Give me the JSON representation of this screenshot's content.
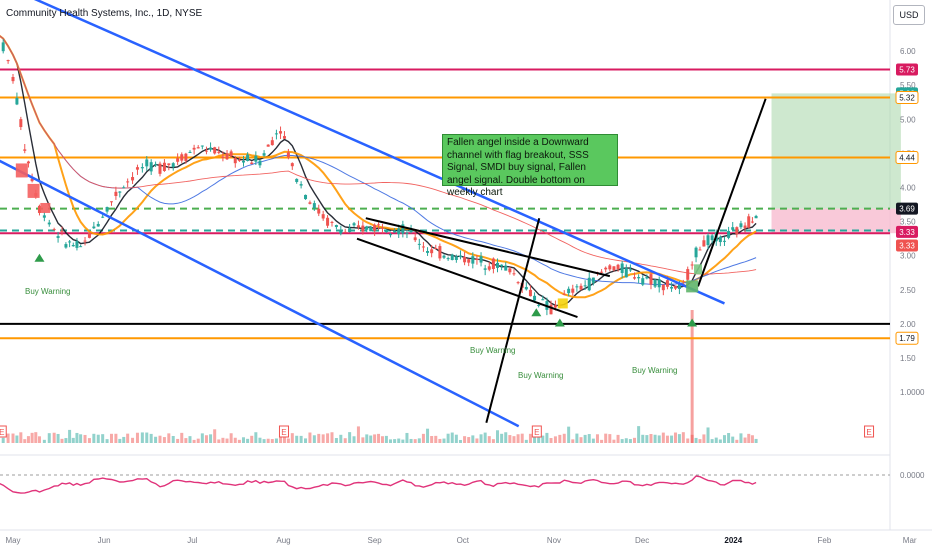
{
  "header": {
    "ticker_title": "Community Health Systems, Inc., 1D, NYSE",
    "currency_button": "USD"
  },
  "colors": {
    "up": "#26a69a",
    "down": "#ef5350",
    "channel": "#2962ff",
    "magenta": "#d81b60",
    "orange": "#ff9800",
    "note_bg": "#5ac85e",
    "tp_zone": "#a5d6a7",
    "sl_zone": "#f8bbd0"
  },
  "note": {
    "text": "Fallen angel inside a Downward channel with flag breakout, SSS Signal, SMDI buy signal, Fallen angel signal. Double bottom on weekly chart"
  },
  "annotations": [
    {
      "id": "bw1",
      "text": "Buy Warning",
      "date": "2023-05-10",
      "price": 2.9
    },
    {
      "id": "bw2",
      "text": "Buy Warning",
      "date": "2023-10-26",
      "price": 2.0
    },
    {
      "id": "bw3",
      "text": "Buy Warning",
      "date": "2023-11-03",
      "price": 1.8
    },
    {
      "id": "bw4",
      "text": "Buy Warning",
      "date": "2023-12-18",
      "price": 1.85
    }
  ],
  "chart_data": {
    "type": "candlestick",
    "price_axis": {
      "ticks": [
        "6.50",
        "6.00",
        "5.50",
        "5.00",
        "4.50",
        "4.00",
        "3.50",
        "3.00",
        "2.50",
        "2.00",
        "1.50",
        "1.0000"
      ]
    },
    "oscillator_axis": {
      "ticks": [
        "0.0000"
      ]
    },
    "time_axis": {
      "labels": [
        "May",
        "Jun",
        "Jul",
        "Aug",
        "Sep",
        "Oct",
        "Nov",
        "Dec",
        "2024",
        "Feb",
        "Mar"
      ]
    },
    "price_labels": [
      {
        "value": "5.73",
        "color": "#d81b60"
      },
      {
        "value": "5.38",
        "color": "#26a69a"
      },
      {
        "value": "5.32",
        "color": "#ff9800"
      },
      {
        "value": "4.44",
        "color": "#ff9800"
      },
      {
        "value": "3.69",
        "color": "#131722"
      },
      {
        "value": "3.33",
        "color": "#d81b60"
      },
      {
        "value": "3.33",
        "color": "#ef5350"
      },
      {
        "value": "1.79",
        "color": "#ff9800"
      }
    ],
    "horizontal_levels": [
      {
        "price": 5.73,
        "color": "#d81b60",
        "style": "solid"
      },
      {
        "price": 5.32,
        "color": "#ff9800",
        "style": "solid"
      },
      {
        "price": 4.44,
        "color": "#ff9800",
        "style": "solid"
      },
      {
        "price": 3.69,
        "color": "#4caf50",
        "style": "dashed"
      },
      {
        "price": 3.33,
        "color": "#d81b60",
        "style": "solid"
      },
      {
        "price": 3.37,
        "color": "#26a69a",
        "style": "dashed"
      },
      {
        "price": 2.0,
        "color": "#000000",
        "style": "solid"
      },
      {
        "price": 1.79,
        "color": "#ff9800",
        "style": "solid"
      }
    ],
    "position": {
      "entry": 3.69,
      "target": 5.38,
      "stop": 3.33,
      "start": "2024-01-14",
      "end": "2024-02-27"
    },
    "series": [
      {
        "name": "close",
        "values": [
          {
            "date": "2023-04-26",
            "close": 6.3
          },
          {
            "date": "2023-05-01",
            "close": 5.6
          },
          {
            "date": "2023-05-05",
            "close": 4.6
          },
          {
            "date": "2023-05-10",
            "close": 3.7
          },
          {
            "date": "2023-05-15",
            "close": 3.4
          },
          {
            "date": "2023-05-19",
            "close": 3.2
          },
          {
            "date": "2023-05-24",
            "close": 3.1
          },
          {
            "date": "2023-05-30",
            "close": 3.5
          },
          {
            "date": "2023-06-05",
            "close": 3.9
          },
          {
            "date": "2023-06-09",
            "close": 4.1
          },
          {
            "date": "2023-06-14",
            "close": 4.3
          },
          {
            "date": "2023-06-20",
            "close": 4.3
          },
          {
            "date": "2023-06-26",
            "close": 4.4
          },
          {
            "date": "2023-07-03",
            "close": 4.6
          },
          {
            "date": "2023-07-10",
            "close": 4.5
          },
          {
            "date": "2023-07-17",
            "close": 4.4
          },
          {
            "date": "2023-07-24",
            "close": 4.4
          },
          {
            "date": "2023-07-31",
            "close": 4.9
          },
          {
            "date": "2023-08-04",
            "close": 4.3
          },
          {
            "date": "2023-08-10",
            "close": 3.8
          },
          {
            "date": "2023-08-16",
            "close": 3.5
          },
          {
            "date": "2023-08-22",
            "close": 3.35
          },
          {
            "date": "2023-08-28",
            "close": 3.4
          },
          {
            "date": "2023-09-05",
            "close": 3.45
          },
          {
            "date": "2023-09-12",
            "close": 3.35
          },
          {
            "date": "2023-09-19",
            "close": 3.1
          },
          {
            "date": "2023-09-26",
            "close": 3.0
          },
          {
            "date": "2023-10-03",
            "close": 2.95
          },
          {
            "date": "2023-10-10",
            "close": 2.9
          },
          {
            "date": "2023-10-17",
            "close": 2.8
          },
          {
            "date": "2023-10-24",
            "close": 2.45
          },
          {
            "date": "2023-10-31",
            "close": 2.2
          },
          {
            "date": "2023-11-06",
            "close": 2.45
          },
          {
            "date": "2023-11-13",
            "close": 2.6
          },
          {
            "date": "2023-11-20",
            "close": 2.85
          },
          {
            "date": "2023-11-27",
            "close": 2.75
          },
          {
            "date": "2023-12-04",
            "close": 2.65
          },
          {
            "date": "2023-12-11",
            "close": 2.55
          },
          {
            "date": "2023-12-15",
            "close": 2.5
          },
          {
            "date": "2023-12-18",
            "close": 2.95
          },
          {
            "date": "2023-12-22",
            "close": 3.2
          },
          {
            "date": "2023-12-29",
            "close": 3.25
          },
          {
            "date": "2024-01-05",
            "close": 3.45
          },
          {
            "date": "2024-01-10",
            "close": 3.69
          }
        ]
      },
      {
        "name": "EMA fast (black)"
      },
      {
        "name": "EMA mid (orange)"
      },
      {
        "name": "MA slow (blue)"
      },
      {
        "name": "MA long (red)"
      }
    ]
  }
}
